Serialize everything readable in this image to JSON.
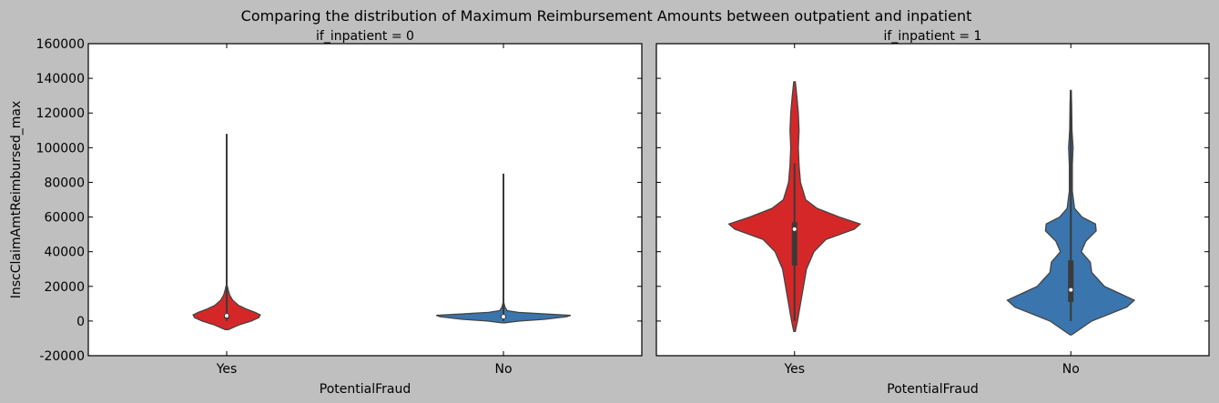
{
  "figure": {
    "title": "Comparing the distribution of Maximum Reimbursement Amounts between outpatient and inpatient",
    "background": "#bfbfbf"
  },
  "chart_data": [
    {
      "type": "violin",
      "title": "if_inpatient = 0",
      "xlabel": "PotentialFraud",
      "ylabel": "InscClaimAmtReimbursed_max",
      "categories": [
        "Yes",
        "No"
      ],
      "ylim": [
        -20000,
        160000
      ],
      "yticks": [
        -20000,
        0,
        20000,
        40000,
        60000,
        80000,
        100000,
        120000,
        140000,
        160000
      ],
      "grid": false,
      "colors": [
        "#d62728",
        "#3a75ad"
      ],
      "violins": [
        {
          "category": "Yes",
          "min": 0,
          "q1": 1500,
          "median": 3000,
          "q3": 4000,
          "max": 108000,
          "density": [
            [
              -5000,
              0.02
            ],
            [
              -2000,
              0.18
            ],
            [
              0,
              0.33
            ],
            [
              2000,
              0.43
            ],
            [
              3500,
              0.45
            ],
            [
              5000,
              0.38
            ],
            [
              7000,
              0.26
            ],
            [
              9000,
              0.16
            ],
            [
              12000,
              0.08
            ],
            [
              15000,
              0.04
            ],
            [
              18000,
              0.02
            ],
            [
              20000,
              0.01
            ]
          ]
        },
        {
          "category": "No",
          "min": 0,
          "q1": 1500,
          "median": 2500,
          "q3": 3500,
          "max": 85000,
          "density": [
            [
              -1000,
              0.02
            ],
            [
              0,
              0.22
            ],
            [
              1000,
              0.55
            ],
            [
              2500,
              0.85
            ],
            [
              3300,
              0.9
            ],
            [
              4000,
              0.6
            ],
            [
              5000,
              0.2
            ],
            [
              6000,
              0.05
            ],
            [
              8000,
              0.02
            ],
            [
              10000,
              0.008
            ]
          ]
        }
      ]
    },
    {
      "type": "violin",
      "title": "if_inpatient = 1",
      "xlabel": "PotentialFraud",
      "ylabel": "",
      "categories": [
        "Yes",
        "No"
      ],
      "ylim": [
        -20000,
        160000
      ],
      "grid": false,
      "colors": [
        "#d62728",
        "#3a75ad"
      ],
      "violins": [
        {
          "category": "Yes",
          "min": 0,
          "q1": 32000,
          "median": 53000,
          "q3": 57000,
          "max": 91000,
          "density": [
            [
              -6000,
              0.01
            ],
            [
              0,
              0.04
            ],
            [
              10000,
              0.08
            ],
            [
              20000,
              0.12
            ],
            [
              30000,
              0.16
            ],
            [
              40000,
              0.26
            ],
            [
              47000,
              0.42
            ],
            [
              53000,
              0.8
            ],
            [
              56000,
              0.88
            ],
            [
              60000,
              0.6
            ],
            [
              65000,
              0.3
            ],
            [
              70000,
              0.15
            ],
            [
              80000,
              0.08
            ],
            [
              90000,
              0.06
            ],
            [
              100000,
              0.05
            ],
            [
              110000,
              0.06
            ],
            [
              120000,
              0.05
            ],
            [
              130000,
              0.03
            ],
            [
              138000,
              0.01
            ]
          ]
        },
        {
          "category": "No",
          "min": 0,
          "q1": 11000,
          "median": 18000,
          "q3": 35000,
          "max": 133000,
          "density": [
            [
              -8000,
              0.01
            ],
            [
              0,
              0.28
            ],
            [
              8000,
              0.75
            ],
            [
              12000,
              0.85
            ],
            [
              16000,
              0.65
            ],
            [
              20000,
              0.45
            ],
            [
              28000,
              0.28
            ],
            [
              34000,
              0.26
            ],
            [
              40000,
              0.14
            ],
            [
              46000,
              0.2
            ],
            [
              52000,
              0.34
            ],
            [
              56000,
              0.33
            ],
            [
              60000,
              0.15
            ],
            [
              65000,
              0.05
            ],
            [
              75000,
              0.02
            ],
            [
              90000,
              0.02
            ],
            [
              100000,
              0.03
            ],
            [
              110000,
              0.015
            ],
            [
              125000,
              0.01
            ],
            [
              133000,
              0.005
            ]
          ]
        }
      ]
    }
  ]
}
